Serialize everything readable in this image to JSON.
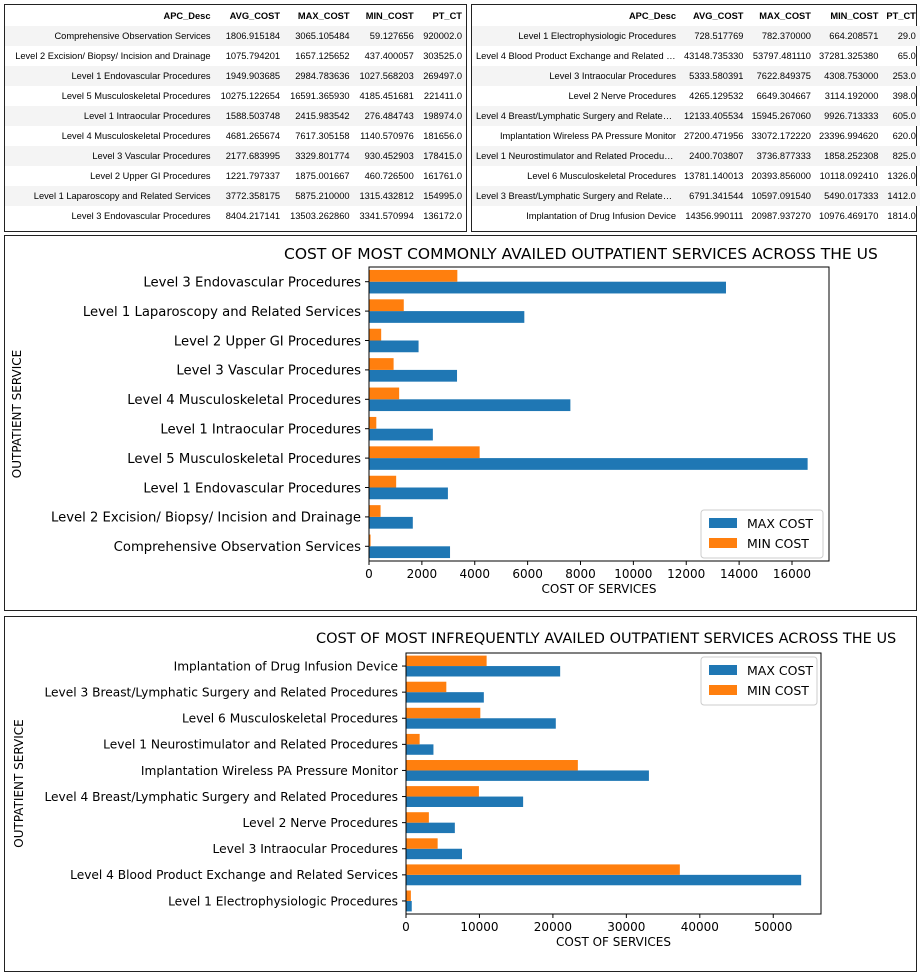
{
  "tables": [
    {
      "columns": [
        "APC_Desc",
        "AVG_COST",
        "MAX_COST",
        "MIN_COST",
        "PT_CT"
      ],
      "rows": [
        [
          "Comprehensive Observation Services",
          "1806.915184",
          "3065.105484",
          "59.127656",
          "920002.0"
        ],
        [
          "Level 2 Excision/ Biopsy/ Incision and Drainage",
          "1075.794201",
          "1657.125652",
          "437.400057",
          "303525.0"
        ],
        [
          "Level 1 Endovascular Procedures",
          "1949.903685",
          "2984.783636",
          "1027.568203",
          "269497.0"
        ],
        [
          "Level 5 Musculoskeletal Procedures",
          "10275.122654",
          "16591.365930",
          "4185.451681",
          "221411.0"
        ],
        [
          "Level 1 Intraocular Procedures",
          "1588.503748",
          "2415.983542",
          "276.484743",
          "198974.0"
        ],
        [
          "Level 4 Musculoskeletal Procedures",
          "4681.265674",
          "7617.305158",
          "1140.570976",
          "181656.0"
        ],
        [
          "Level 3 Vascular Procedures",
          "2177.683995",
          "3329.801774",
          "930.452903",
          "178415.0"
        ],
        [
          "Level 2 Upper GI Procedures",
          "1221.797337",
          "1875.001667",
          "460.726500",
          "161761.0"
        ],
        [
          "Level 1 Laparoscopy and Related Services",
          "3772.358175",
          "5875.210000",
          "1315.432812",
          "154995.0"
        ],
        [
          "Level 3 Endovascular Procedures",
          "8404.217141",
          "13503.262860",
          "3341.570994",
          "136172.0"
        ]
      ]
    },
    {
      "columns": [
        "APC_Desc",
        "AVG_COST",
        "MAX_COST",
        "MIN_COST",
        "PT_CT"
      ],
      "rows": [
        [
          "Level 1 Electrophysiologic Procedures",
          "728.517769",
          "782.370000",
          "664.208571",
          "29.0"
        ],
        [
          "Level 4 Blood Product Exchange and Related Ser...",
          "43148.735330",
          "53797.481110",
          "37281.325380",
          "65.0"
        ],
        [
          "Level 3 Intraocular Procedures",
          "5333.580391",
          "7622.849375",
          "4308.753000",
          "253.0"
        ],
        [
          "Level 2 Nerve Procedures",
          "4265.129532",
          "6649.304667",
          "3114.192000",
          "398.0"
        ],
        [
          "Level 4 Breast/Lymphatic Surgery and Related P...",
          "12133.405534",
          "15945.267060",
          "9926.713333",
          "605.0"
        ],
        [
          "Implantation Wireless PA Pressure Monitor",
          "27200.471956",
          "33072.172220",
          "23396.994620",
          "620.0"
        ],
        [
          "Level 1 Neurostimulator and Related Procedures",
          "2400.703807",
          "3736.877333",
          "1858.252308",
          "825.0"
        ],
        [
          "Level 6 Musculoskeletal Procedures",
          "13781.140013",
          "20393.856000",
          "10118.092410",
          "1326.0"
        ],
        [
          "Level 3 Breast/Lymphatic Surgery and Related P...",
          "6791.341544",
          "10597.091540",
          "5490.017333",
          "1412.0"
        ],
        [
          "Implantation of Drug Infusion Device",
          "14356.990111",
          "20987.937270",
          "10976.469170",
          "1814.0"
        ]
      ]
    }
  ],
  "colors": {
    "max": "#1f77b4",
    "min": "#ff7f0e",
    "axis": "#000000"
  },
  "chart_data": [
    {
      "type": "bar",
      "orientation": "horizontal",
      "title": "COST OF MOST COMMONLY AVAILED OUTPATIENT SERVICES ACROSS THE US",
      "xlabel": "COST OF SERVICES",
      "ylabel": "OUTPATIENT SERVICE",
      "xlim": [
        0,
        17400
      ],
      "xticks": [
        0,
        2000,
        4000,
        6000,
        8000,
        10000,
        12000,
        14000,
        16000
      ],
      "legend_position": "lower right",
      "categories": [
        "Comprehensive Observation Services",
        "Level 2 Excision/ Biopsy/ Incision and Drainage",
        "Level 1 Endovascular Procedures",
        "Level 5 Musculoskeletal Procedures",
        "Level 1 Intraocular Procedures",
        "Level 4 Musculoskeletal Procedures",
        "Level 3 Vascular Procedures",
        "Level 2 Upper GI Procedures",
        "Level 1 Laparoscopy and Related Services",
        "Level 3 Endovascular Procedures"
      ],
      "series": [
        {
          "name": "MAX COST",
          "values": [
            3065.1,
            1657.1,
            2984.8,
            16591.4,
            2416.0,
            7617.3,
            3329.8,
            1875.0,
            5875.2,
            13503.3
          ]
        },
        {
          "name": "MIN COST",
          "values": [
            59.1,
            437.4,
            1027.6,
            4185.5,
            276.5,
            1140.6,
            930.5,
            460.7,
            1315.4,
            3341.6
          ]
        }
      ]
    },
    {
      "type": "bar",
      "orientation": "horizontal",
      "title": "COST OF MOST INFREQUENTLY AVAILED OUTPATIENT SERVICES ACROSS THE US",
      "xlabel": "COST OF SERVICES",
      "ylabel": "OUTPATIENT SERVICE",
      "xlim": [
        0,
        56500
      ],
      "xticks": [
        0,
        10000,
        20000,
        30000,
        40000,
        50000
      ],
      "legend_position": "upper right",
      "categories": [
        "Level 1 Electrophysiologic Procedures",
        "Level 4 Blood Product Exchange and Related Services",
        "Level 3 Intraocular Procedures",
        "Level 2 Nerve Procedures",
        "Level 4 Breast/Lymphatic Surgery and Related Procedures",
        "Implantation Wireless PA Pressure Monitor",
        "Level 1 Neurostimulator and Related Procedures",
        "Level 6 Musculoskeletal Procedures",
        "Level 3 Breast/Lymphatic Surgery and Related Procedures",
        "Implantation of Drug Infusion Device"
      ],
      "series": [
        {
          "name": "MAX COST",
          "values": [
            782.4,
            53797.5,
            7622.8,
            6649.3,
            15945.3,
            33072.2,
            3736.9,
            20393.9,
            10597.1,
            20987.9
          ]
        },
        {
          "name": "MIN COST",
          "values": [
            664.2,
            37281.3,
            4308.8,
            3114.2,
            9926.7,
            23397.0,
            1858.3,
            10118.1,
            5490.0,
            10976.5
          ]
        }
      ]
    }
  ]
}
